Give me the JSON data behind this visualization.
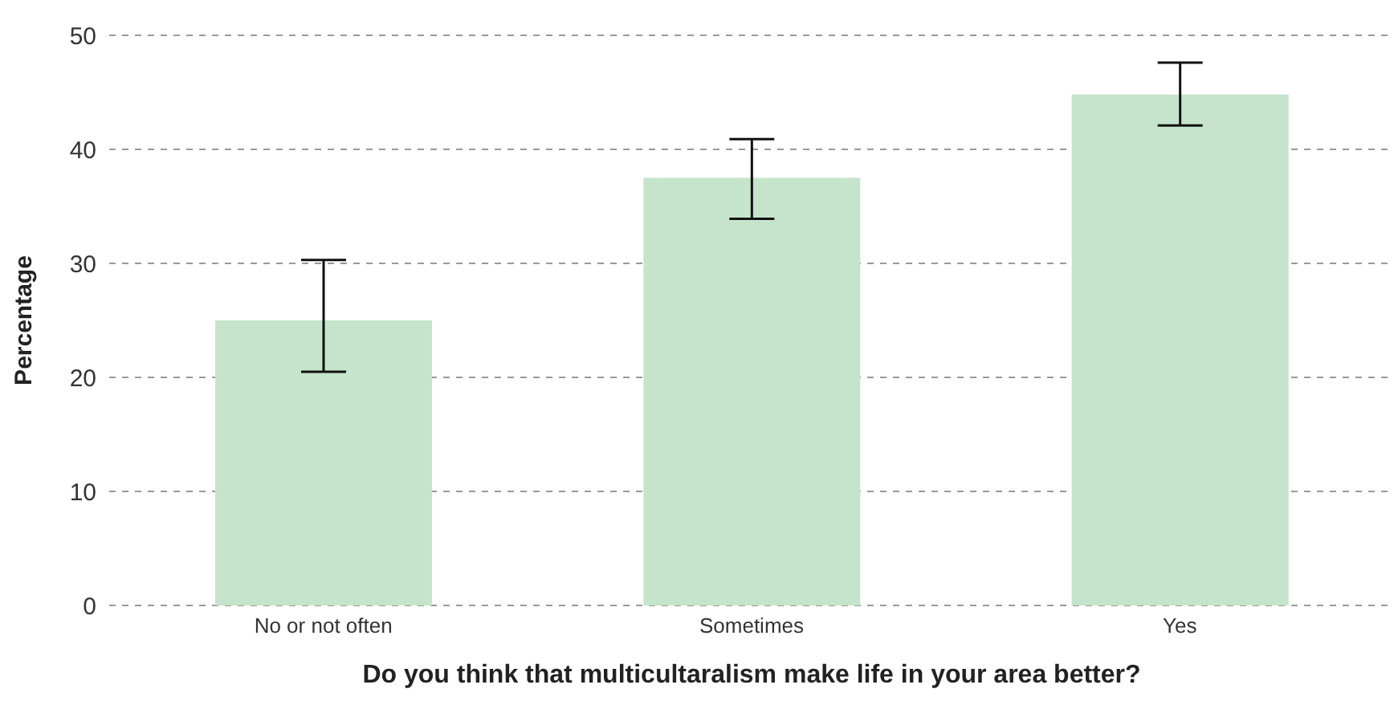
{
  "chart_data": {
    "type": "bar",
    "xlabel": "Do you think that multicultaralism make life in your area better?",
    "ylabel": "Percentage",
    "categories": [
      "No or not often",
      "Sometimes",
      "Yes"
    ],
    "values": [
      25,
      37.5,
      44.8
    ],
    "errors": [
      [
        20.5,
        30.3
      ],
      [
        33.9,
        40.9
      ],
      [
        42.1,
        47.6
      ]
    ],
    "color": "#c5e4cb",
    "ylim": [
      0,
      50
    ],
    "yticks": [
      0,
      10,
      20,
      30,
      40,
      50
    ],
    "grid": "y"
  }
}
